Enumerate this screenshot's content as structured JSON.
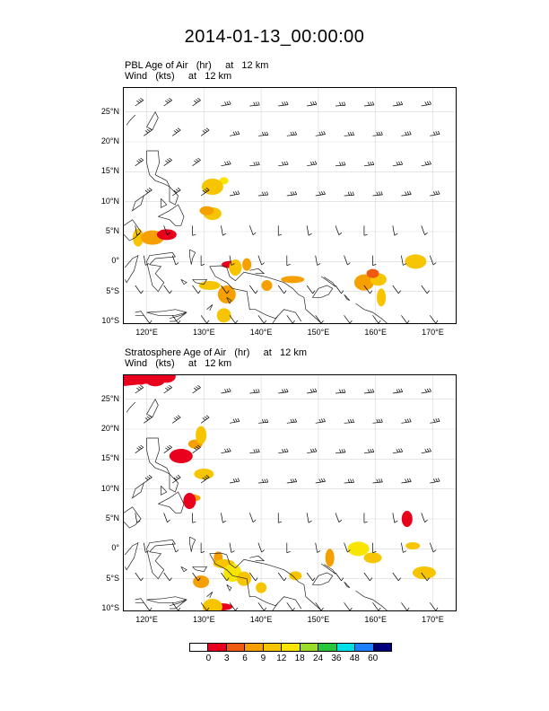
{
  "title": "2014-01-13_00:00:00",
  "panels": [
    {
      "line1": "PBL Age of Air   (hr)     at   12 km",
      "line2": "Wind   (kts)     at   12 km",
      "shading": [
        {
          "lon": 133.5,
          "lat": 13.5,
          "level": 5
        },
        {
          "lon": 131.5,
          "lat": 12.5,
          "level": 4
        },
        {
          "lon": 131.5,
          "lat": 8.0,
          "level": 4
        },
        {
          "lon": 130.5,
          "lat": 8.5,
          "level": 3
        },
        {
          "lon": 118.5,
          "lat": 4.0,
          "level": 4
        },
        {
          "lon": 121.0,
          "lat": 4.0,
          "level": 3
        },
        {
          "lon": 123.5,
          "lat": 4.5,
          "level": 1
        },
        {
          "lon": 134.5,
          "lat": -0.5,
          "level": 1
        },
        {
          "lon": 135.5,
          "lat": -1.0,
          "level": 4
        },
        {
          "lon": 137.5,
          "lat": -0.5,
          "level": 3
        },
        {
          "lon": 131.0,
          "lat": -4.0,
          "level": 4
        },
        {
          "lon": 134.0,
          "lat": -5.5,
          "level": 3
        },
        {
          "lon": 133.5,
          "lat": -9.0,
          "level": 4
        },
        {
          "lon": 141.0,
          "lat": -4.0,
          "level": 3
        },
        {
          "lon": 145.5,
          "lat": -3.0,
          "level": 3
        },
        {
          "lon": 158.0,
          "lat": -3.5,
          "level": 3
        },
        {
          "lon": 160.5,
          "lat": -3.0,
          "level": 4
        },
        {
          "lon": 159.5,
          "lat": -2.0,
          "level": 2
        },
        {
          "lon": 161.0,
          "lat": -6.0,
          "level": 4
        },
        {
          "lon": 167.0,
          "lat": 0.0,
          "level": 4
        }
      ]
    },
    {
      "line1": "Stratosphere Age of Air   (hr)     at   12 km",
      "line2": "Wind   (kts)     at   12 km",
      "shading": [
        {
          "lon": 119.0,
          "lat": 28.0,
          "level": 1
        },
        {
          "lon": 121.5,
          "lat": 28.5,
          "level": 1
        },
        {
          "lon": 123.5,
          "lat": 28.8,
          "level": 1
        },
        {
          "lon": 128.5,
          "lat": 17.5,
          "level": 3
        },
        {
          "lon": 129.5,
          "lat": 19.0,
          "level": 4
        },
        {
          "lon": 126.0,
          "lat": 15.5,
          "level": 1
        },
        {
          "lon": 130.0,
          "lat": 12.5,
          "level": 4
        },
        {
          "lon": 128.0,
          "lat": 8.5,
          "level": 3
        },
        {
          "lon": 127.5,
          "lat": 8.0,
          "level": 1
        },
        {
          "lon": 132.5,
          "lat": -1.5,
          "level": 3
        },
        {
          "lon": 133.5,
          "lat": -2.5,
          "level": 4
        },
        {
          "lon": 135.0,
          "lat": -4.0,
          "level": 5
        },
        {
          "lon": 137.0,
          "lat": -5.0,
          "level": 4
        },
        {
          "lon": 140.0,
          "lat": -6.5,
          "level": 4
        },
        {
          "lon": 133.0,
          "lat": -9.7,
          "level": 1
        },
        {
          "lon": 131.5,
          "lat": -9.7,
          "level": 4
        },
        {
          "lon": 129.5,
          "lat": -5.5,
          "level": 3
        },
        {
          "lon": 146.0,
          "lat": -4.5,
          "level": 4
        },
        {
          "lon": 152.0,
          "lat": -1.5,
          "level": 3
        },
        {
          "lon": 157.0,
          "lat": 0.0,
          "level": 5
        },
        {
          "lon": 159.5,
          "lat": -1.5,
          "level": 4
        },
        {
          "lon": 166.5,
          "lat": 0.5,
          "level": 4
        },
        {
          "lon": 165.5,
          "lat": 5.0,
          "level": 1
        },
        {
          "lon": 168.5,
          "lat": -4.0,
          "level": 4
        }
      ]
    }
  ],
  "lat_ticks": [
    "25°N",
    "20°N",
    "15°N",
    "10°N",
    "5°N",
    "0°",
    "5°S",
    "10°S"
  ],
  "lon_ticks": [
    "120°E",
    "130°E",
    "140°E",
    "150°E",
    "160°E",
    "170°E"
  ],
  "colorbar": {
    "labels": [
      "0",
      "3",
      "6",
      "9",
      "12",
      "18",
      "24",
      "36",
      "48",
      "60"
    ],
    "colors": [
      "#ffffff",
      "#e8001c",
      "#f05a10",
      "#f5a000",
      "#f7c400",
      "#f9e600",
      "#9cdc2c",
      "#28c83c",
      "#00e0e8",
      "#1e80ff",
      "#00007a"
    ]
  }
}
